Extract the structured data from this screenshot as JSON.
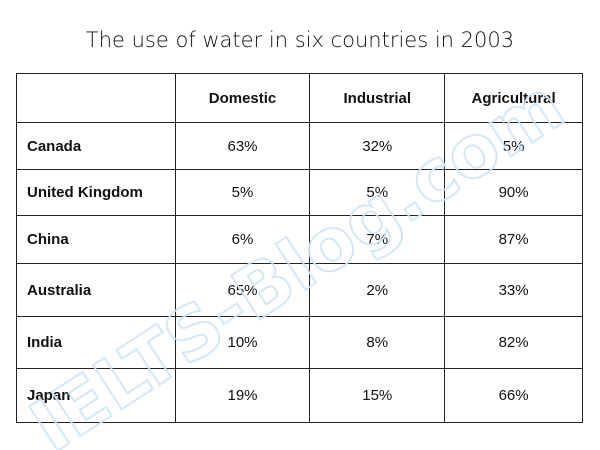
{
  "header": {
    "title": "The use of water in six countries in 2003"
  },
  "table": {
    "columns": [
      "",
      "Domestic",
      "Industrial",
      "Agricultural"
    ],
    "rows": [
      [
        "Canada",
        "63%",
        "32%",
        "5%"
      ],
      [
        "United Kingdom",
        "5%",
        "5%",
        "90%"
      ],
      [
        "China",
        "6%",
        "7%",
        "87%"
      ],
      [
        "Australia",
        "65%",
        "2%",
        "33%"
      ],
      [
        "India",
        "10%",
        "8%",
        "82%"
      ],
      [
        "Japan",
        "19%",
        "15%",
        "66%"
      ]
    ]
  },
  "watermark": "IELTS-Blog.com"
}
